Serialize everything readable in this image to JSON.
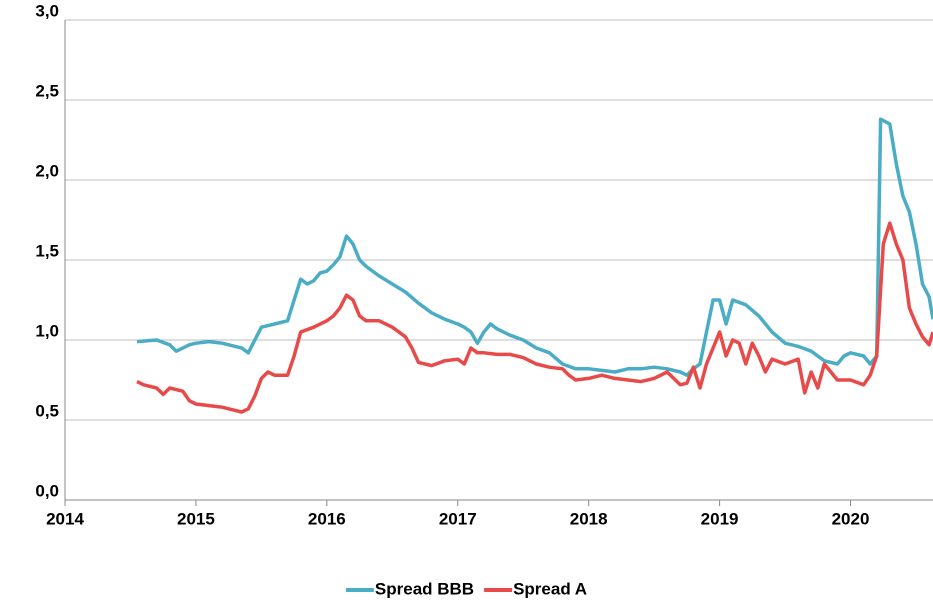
{
  "chart_data": {
    "type": "line",
    "xlim": [
      2014,
      2020.63
    ],
    "xticks": [
      2014,
      2015,
      2016,
      2017,
      2018,
      2019,
      2020
    ],
    "ylim": [
      0,
      3
    ],
    "yticks": [
      {
        "value": 0,
        "label": "0,0"
      },
      {
        "value": 0.5,
        "label": "0,5"
      },
      {
        "value": 1,
        "label": "1,0"
      },
      {
        "value": 1.5,
        "label": "1,5"
      },
      {
        "value": 2,
        "label": "2,0"
      },
      {
        "value": 2.5,
        "label": "2,5"
      },
      {
        "value": 3,
        "label": "3,0"
      }
    ],
    "grid": true,
    "legend": "bottom",
    "series": [
      {
        "name": "Spread BBB",
        "color": "#4bacc6",
        "x": [
          2014.55,
          2014.7,
          2014.8,
          2014.85,
          2014.95,
          2015.0,
          2015.1,
          2015.2,
          2015.3,
          2015.35,
          2015.4,
          2015.45,
          2015.5,
          2015.6,
          2015.7,
          2015.75,
          2015.8,
          2015.85,
          2015.9,
          2015.95,
          2016.0,
          2016.05,
          2016.1,
          2016.15,
          2016.2,
          2016.25,
          2016.3,
          2016.4,
          2016.5,
          2016.6,
          2016.7,
          2016.8,
          2016.9,
          2017.0,
          2017.05,
          2017.1,
          2017.15,
          2017.2,
          2017.25,
          2017.3,
          2017.4,
          2017.5,
          2017.6,
          2017.7,
          2017.8,
          2017.9,
          2018.0,
          2018.1,
          2018.2,
          2018.3,
          2018.4,
          2018.5,
          2018.6,
          2018.7,
          2018.75,
          2018.8,
          2018.85,
          2018.9,
          2018.95,
          2019.0,
          2019.05,
          2019.1,
          2019.2,
          2019.3,
          2019.4,
          2019.5,
          2019.6,
          2019.7,
          2019.8,
          2019.9,
          2019.95,
          2020.0,
          2020.1,
          2020.15,
          2020.2,
          2020.23,
          2020.3,
          2020.35,
          2020.4,
          2020.45,
          2020.5,
          2020.55,
          2020.6,
          2020.63
        ],
        "values": [
          0.99,
          1.0,
          0.97,
          0.93,
          0.97,
          0.98,
          0.99,
          0.98,
          0.96,
          0.95,
          0.92,
          1.0,
          1.08,
          1.1,
          1.12,
          1.25,
          1.38,
          1.35,
          1.37,
          1.42,
          1.43,
          1.47,
          1.52,
          1.65,
          1.6,
          1.5,
          1.46,
          1.4,
          1.35,
          1.3,
          1.23,
          1.17,
          1.13,
          1.1,
          1.08,
          1.05,
          0.98,
          1.05,
          1.1,
          1.07,
          1.03,
          1.0,
          0.95,
          0.92,
          0.85,
          0.82,
          0.82,
          0.81,
          0.8,
          0.82,
          0.82,
          0.83,
          0.82,
          0.8,
          0.78,
          0.82,
          0.85,
          1.05,
          1.25,
          1.25,
          1.1,
          1.25,
          1.22,
          1.15,
          1.05,
          0.98,
          0.96,
          0.93,
          0.87,
          0.85,
          0.9,
          0.92,
          0.9,
          0.85,
          0.9,
          2.38,
          2.35,
          2.1,
          1.9,
          1.8,
          1.6,
          1.35,
          1.27,
          1.13
        ]
      },
      {
        "name": "Spread A",
        "color": "#e84a4a",
        "x": [
          2014.55,
          2014.6,
          2014.7,
          2014.75,
          2014.8,
          2014.9,
          2014.95,
          2015.0,
          2015.1,
          2015.2,
          2015.3,
          2015.35,
          2015.4,
          2015.45,
          2015.5,
          2015.55,
          2015.6,
          2015.7,
          2015.75,
          2015.8,
          2015.9,
          2016.0,
          2016.05,
          2016.1,
          2016.15,
          2016.2,
          2016.25,
          2016.3,
          2016.4,
          2016.5,
          2016.6,
          2016.65,
          2016.7,
          2016.8,
          2016.9,
          2017.0,
          2017.05,
          2017.1,
          2017.15,
          2017.2,
          2017.3,
          2017.4,
          2017.5,
          2017.6,
          2017.7,
          2017.8,
          2017.85,
          2017.9,
          2018.0,
          2018.1,
          2018.2,
          2018.3,
          2018.4,
          2018.5,
          2018.6,
          2018.7,
          2018.75,
          2018.8,
          2018.85,
          2018.9,
          2018.95,
          2019.0,
          2019.05,
          2019.1,
          2019.15,
          2019.2,
          2019.25,
          2019.3,
          2019.35,
          2019.4,
          2019.5,
          2019.6,
          2019.65,
          2019.7,
          2019.75,
          2019.8,
          2019.9,
          2020.0,
          2020.1,
          2020.15,
          2020.2,
          2020.25,
          2020.3,
          2020.35,
          2020.4,
          2020.45,
          2020.5,
          2020.55,
          2020.6,
          2020.63
        ],
        "values": [
          0.74,
          0.72,
          0.7,
          0.66,
          0.7,
          0.68,
          0.62,
          0.6,
          0.59,
          0.58,
          0.56,
          0.55,
          0.57,
          0.65,
          0.76,
          0.8,
          0.78,
          0.78,
          0.9,
          1.05,
          1.08,
          1.12,
          1.15,
          1.2,
          1.28,
          1.25,
          1.15,
          1.12,
          1.12,
          1.08,
          1.02,
          0.95,
          0.86,
          0.84,
          0.87,
          0.88,
          0.85,
          0.95,
          0.92,
          0.92,
          0.91,
          0.91,
          0.89,
          0.85,
          0.83,
          0.82,
          0.78,
          0.75,
          0.76,
          0.78,
          0.76,
          0.75,
          0.74,
          0.76,
          0.8,
          0.72,
          0.73,
          0.83,
          0.7,
          0.85,
          0.95,
          1.05,
          0.9,
          1.0,
          0.98,
          0.85,
          0.98,
          0.9,
          0.8,
          0.88,
          0.85,
          0.88,
          0.67,
          0.8,
          0.7,
          0.85,
          0.75,
          0.75,
          0.72,
          0.78,
          0.9,
          1.6,
          1.73,
          1.6,
          1.5,
          1.2,
          1.1,
          1.02,
          0.97,
          1.05
        ]
      }
    ]
  }
}
